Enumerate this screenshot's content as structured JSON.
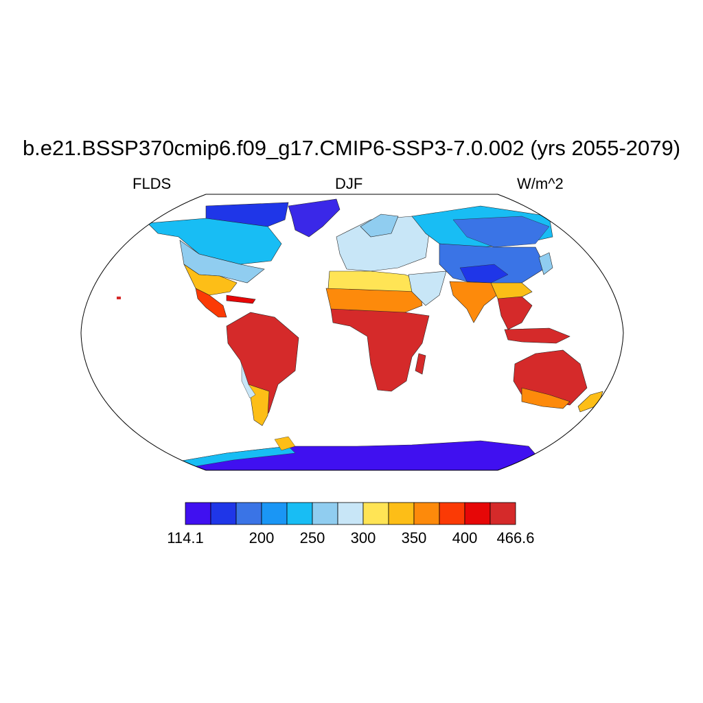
{
  "title": "b.e21.BSSP370cmip6.f09_g17.CMIP6-SSP3-7.0.002 (yrs 2055-2079)",
  "left_label": "FLDS",
  "center_label": "DJF",
  "right_label": "W/m^2",
  "colorbar": {
    "colors": [
      "#4010f0",
      "#1f36e8",
      "#3a74e6",
      "#1a96f5",
      "#18bdf4",
      "#90cdf0",
      "#c8e6f7",
      "#ffe455",
      "#fdbe17",
      "#fd8a0b",
      "#fb3a05",
      "#e60707",
      "#d52a2a"
    ],
    "labels": [
      "114.1",
      "200",
      "250",
      "300",
      "350",
      "400",
      "466.6"
    ],
    "label_positions": [
      0,
      3,
      5,
      7,
      9,
      11,
      13
    ]
  },
  "map": {
    "projection": "Robinson",
    "land_regions": [
      {
        "name": "greenland",
        "fill": "#3a28e8"
      },
      {
        "name": "north-america-north",
        "fill": "#18bdf4"
      },
      {
        "name": "north-america-mid",
        "fill": "#90cdf0"
      },
      {
        "name": "north-america-south",
        "fill": "#fdbe17"
      },
      {
        "name": "central-america",
        "fill": "#fb3a05"
      },
      {
        "name": "south-america",
        "fill": "#d52a2a"
      },
      {
        "name": "europe",
        "fill": "#c8e6f7"
      },
      {
        "name": "north-africa",
        "fill": "#ffe455"
      },
      {
        "name": "africa",
        "fill": "#d52a2a"
      },
      {
        "name": "asia-north",
        "fill": "#3a74e6"
      },
      {
        "name": "asia-central",
        "fill": "#1f36e8"
      },
      {
        "name": "india",
        "fill": "#fd8a0b"
      },
      {
        "name": "southeast-asia",
        "fill": "#d52a2a"
      },
      {
        "name": "australia",
        "fill": "#d52a2a"
      },
      {
        "name": "antarctica",
        "fill": "#4010f0"
      }
    ]
  }
}
